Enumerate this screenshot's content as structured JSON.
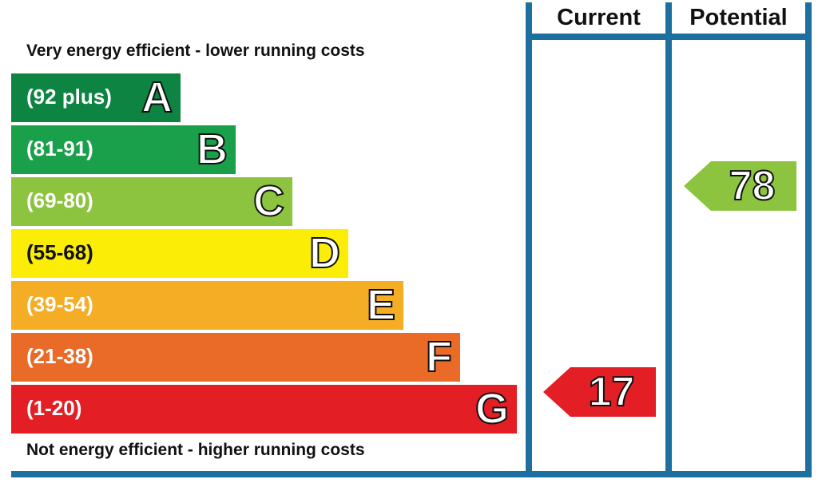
{
  "chart_data": {
    "type": "bar",
    "top_note": "Very energy efficient - lower running costs",
    "bottom_note": "Not energy efficient - higher running costs",
    "columns": [
      "Current",
      "Potential"
    ],
    "bands": [
      {
        "letter": "A",
        "range": "(92 plus)",
        "min": 92,
        "max": 100,
        "color": "#0e8443"
      },
      {
        "letter": "B",
        "range": "(81-91)",
        "min": 81,
        "max": 91,
        "color": "#1aa04a"
      },
      {
        "letter": "C",
        "range": "(69-80)",
        "min": 69,
        "max": 80,
        "color": "#8cc43f"
      },
      {
        "letter": "D",
        "range": "(55-68)",
        "min": 55,
        "max": 68,
        "color": "#fbed05"
      },
      {
        "letter": "E",
        "range": "(39-54)",
        "min": 39,
        "max": 54,
        "color": "#f4ad24"
      },
      {
        "letter": "F",
        "range": "(21-38)",
        "min": 21,
        "max": 38,
        "color": "#ea6b28"
      },
      {
        "letter": "G",
        "range": "(1-20)",
        "min": 1,
        "max": 20,
        "color": "#e31e25"
      }
    ],
    "current": {
      "value": "17",
      "band": "G",
      "color": "#e31e25"
    },
    "potential": {
      "value": "78",
      "band": "C",
      "color": "#8cc43f"
    }
  }
}
